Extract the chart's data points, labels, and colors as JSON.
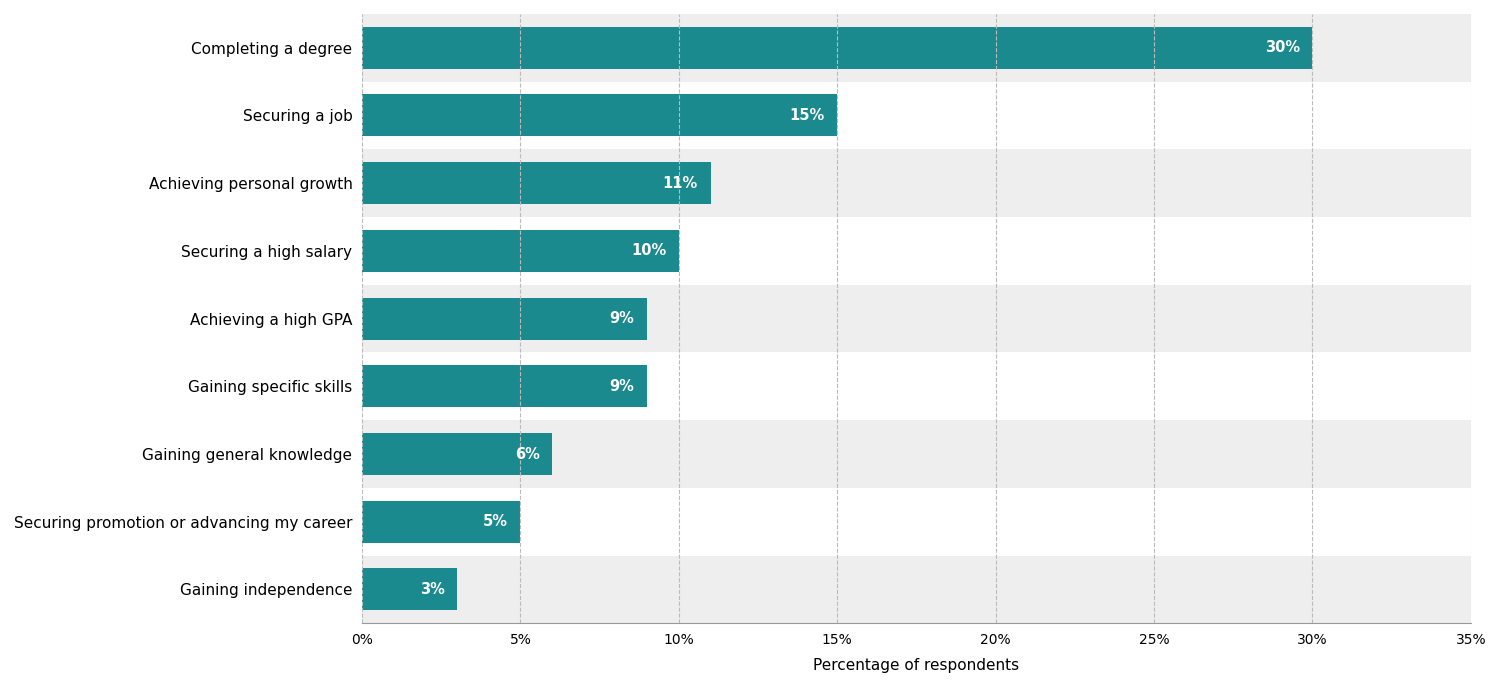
{
  "categories": [
    "Completing a degree",
    "Securing a job",
    "Achieving personal growth",
    "Securing a high salary",
    "Achieving a high GPA",
    "Gaining specific skills",
    "Gaining general knowledge",
    "Securing promotion or advancing my career",
    "Gaining independence"
  ],
  "values": [
    30,
    15,
    11,
    10,
    9,
    9,
    6,
    5,
    3
  ],
  "bar_color": "#1a8a8f",
  "label_color": "#ffffff",
  "row_color_odd": "#eeeeee",
  "row_color_even": "#ffffff",
  "xlabel": "Percentage of respondents",
  "xlim": [
    0,
    35
  ],
  "xticks": [
    0,
    5,
    10,
    15,
    20,
    25,
    30,
    35
  ],
  "grid_color": "#bbbbbb",
  "bar_height": 0.62,
  "label_fontsize": 11,
  "tick_fontsize": 10,
  "xlabel_fontsize": 11,
  "value_fontsize": 10.5
}
